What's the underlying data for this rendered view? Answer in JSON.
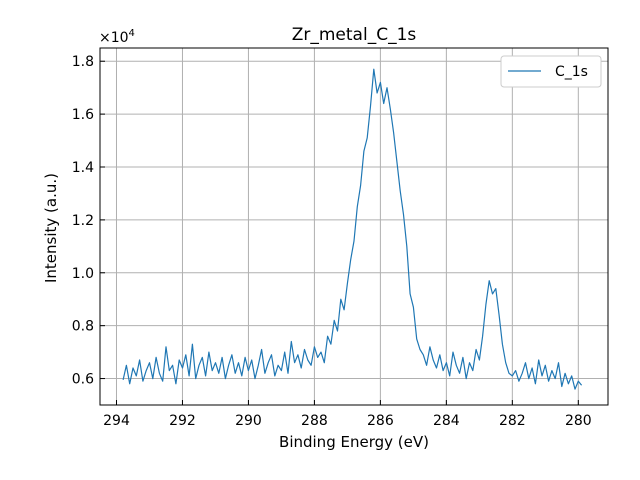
{
  "chart_data": {
    "type": "line",
    "title": "Zr_metal_C_1s",
    "xlabel": "Binding Energy (eV)",
    "ylabel": "Intensity (a.u.)",
    "xlim": [
      294.5,
      279.1
    ],
    "ylim": [
      5000,
      18500
    ],
    "x_inverted": true,
    "y_scale_label": "×10^4",
    "y_scale_base": "×10",
    "y_scale_exp": "4",
    "xticks": [
      294,
      292,
      290,
      288,
      286,
      284,
      282,
      280
    ],
    "xtick_labels": [
      "294",
      "292",
      "290",
      "288",
      "286",
      "284",
      "282",
      "280"
    ],
    "yticks": [
      6000,
      8000,
      10000,
      12000,
      14000,
      16000,
      18000
    ],
    "ytick_labels": [
      "0.6",
      "0.8",
      "1.0",
      "1.2",
      "1.4",
      "1.6",
      "1.8"
    ],
    "grid": true,
    "legend_position": "top-right",
    "series": [
      {
        "name": "C_1s",
        "color": "#1f77b4",
        "x": [
          293.8,
          293.7,
          293.6,
          293.5,
          293.4,
          293.3,
          293.2,
          293.1,
          293.0,
          292.9,
          292.8,
          292.7,
          292.6,
          292.5,
          292.4,
          292.3,
          292.2,
          292.1,
          292.0,
          291.9,
          291.8,
          291.7,
          291.6,
          291.5,
          291.4,
          291.3,
          291.2,
          291.1,
          291.0,
          290.9,
          290.8,
          290.7,
          290.6,
          290.5,
          290.4,
          290.3,
          290.2,
          290.1,
          290.0,
          289.9,
          289.8,
          289.7,
          289.6,
          289.5,
          289.4,
          289.3,
          289.2,
          289.1,
          289.0,
          288.9,
          288.8,
          288.7,
          288.6,
          288.5,
          288.4,
          288.3,
          288.2,
          288.1,
          288.0,
          287.9,
          287.8,
          287.7,
          287.6,
          287.5,
          287.4,
          287.3,
          287.2,
          287.1,
          287.0,
          286.9,
          286.8,
          286.7,
          286.6,
          286.5,
          286.4,
          286.3,
          286.2,
          286.1,
          286.0,
          285.9,
          285.8,
          285.7,
          285.6,
          285.5,
          285.4,
          285.3,
          285.2,
          285.1,
          285.0,
          284.9,
          284.8,
          284.7,
          284.6,
          284.5,
          284.4,
          284.3,
          284.2,
          284.1,
          284.0,
          283.9,
          283.8,
          283.7,
          283.6,
          283.5,
          283.4,
          283.3,
          283.2,
          283.1,
          283.0,
          282.9,
          282.8,
          282.7,
          282.6,
          282.5,
          282.4,
          282.3,
          282.2,
          282.1,
          282.0,
          281.9,
          281.8,
          281.7,
          281.6,
          281.5,
          281.4,
          281.3,
          281.2,
          281.1,
          281.0,
          280.9,
          280.8,
          280.7,
          280.6,
          280.5,
          280.4,
          280.3,
          280.2,
          280.1,
          280.0,
          279.9
        ],
        "y": [
          5950,
          6500,
          5800,
          6400,
          6100,
          6700,
          5900,
          6300,
          6600,
          6000,
          6800,
          6200,
          5900,
          7200,
          6300,
          6500,
          5800,
          6700,
          6400,
          6900,
          6100,
          7300,
          6000,
          6500,
          6800,
          6100,
          7000,
          6300,
          6600,
          6200,
          6800,
          6000,
          6500,
          6900,
          6200,
          6600,
          6100,
          6800,
          6300,
          6700,
          6000,
          6500,
          7100,
          6200,
          6600,
          6900,
          6100,
          6500,
          6300,
          7000,
          6200,
          7400,
          6600,
          6900,
          6400,
          7100,
          6700,
          6500,
          7200,
          6800,
          7000,
          6600,
          7600,
          7300,
          8200,
          7800,
          9000,
          8600,
          9600,
          10500,
          11200,
          12500,
          13300,
          14600,
          15100,
          16300,
          17700,
          16800,
          17200,
          16400,
          17000,
          16200,
          15300,
          14200,
          13100,
          12200,
          11000,
          9200,
          8700,
          7500,
          7100,
          6900,
          6500,
          7200,
          6700,
          6400,
          6900,
          6300,
          6600,
          6100,
          7000,
          6500,
          6200,
          6800,
          6000,
          6600,
          6300,
          7100,
          6700,
          7600,
          8800,
          9700,
          9200,
          9400,
          8400,
          7300,
          6600,
          6200,
          6100,
          6300,
          5900,
          6200,
          6600,
          6000,
          6400,
          5800,
          6700,
          6100,
          6500,
          5900,
          6300,
          6000,
          6600,
          5700,
          6200,
          5800,
          6100,
          5600,
          5900,
          5750
        ]
      }
    ]
  }
}
